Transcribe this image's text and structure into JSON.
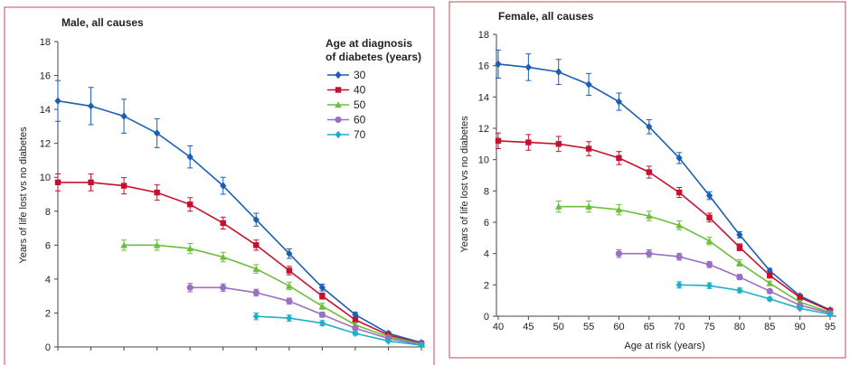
{
  "chart_data": [
    {
      "type": "line",
      "title": "Male, all causes",
      "xlabel": "",
      "ylabel": "Years of life lost vs no diabetes",
      "xlim": [
        40,
        95
      ],
      "ylim": [
        0,
        18
      ],
      "yticks": [
        0,
        2,
        4,
        6,
        8,
        10,
        12,
        14,
        16,
        18
      ],
      "x": [
        40,
        45,
        50,
        55,
        60,
        65,
        70,
        75,
        80,
        85,
        90,
        95
      ],
      "legend_title": [
        "Age at diagnosis",
        "of diabetes (years)"
      ],
      "legend_position": "top-right",
      "series": [
        {
          "name": "30",
          "color": "#1a5fb4",
          "marker": "diamond",
          "x": [
            40,
            45,
            50,
            55,
            60,
            65,
            70,
            75,
            80,
            85,
            90,
            95
          ],
          "values": [
            14.5,
            14.2,
            13.6,
            12.6,
            11.2,
            9.5,
            7.5,
            5.5,
            3.5,
            1.9,
            0.8,
            0.25
          ],
          "errors": [
            1.2,
            1.1,
            1.0,
            0.85,
            0.65,
            0.5,
            0.38,
            0.28,
            0.2,
            0.14,
            0.1,
            0.06
          ]
        },
        {
          "name": "40",
          "color": "#c8102e",
          "marker": "square",
          "x": [
            40,
            45,
            50,
            55,
            60,
            65,
            70,
            75,
            80,
            85,
            90,
            95
          ],
          "values": [
            9.7,
            9.7,
            9.5,
            9.1,
            8.4,
            7.3,
            6.0,
            4.5,
            3.0,
            1.6,
            0.7,
            0.2
          ],
          "errors": [
            0.5,
            0.5,
            0.48,
            0.45,
            0.4,
            0.35,
            0.3,
            0.25,
            0.18,
            0.13,
            0.1,
            0.06
          ]
        },
        {
          "name": "50",
          "color": "#6dbf3b",
          "marker": "triangle",
          "x": [
            50,
            55,
            60,
            65,
            70,
            75,
            80,
            85,
            90,
            95
          ],
          "values": [
            6.0,
            6.0,
            5.8,
            5.3,
            4.6,
            3.6,
            2.4,
            1.3,
            0.6,
            0.18
          ],
          "errors": [
            0.3,
            0.3,
            0.3,
            0.28,
            0.25,
            0.22,
            0.18,
            0.12,
            0.08,
            0.05
          ]
        },
        {
          "name": "60",
          "color": "#9b6fc3",
          "marker": "circle",
          "x": [
            60,
            65,
            70,
            75,
            80,
            85,
            90,
            95
          ],
          "values": [
            3.5,
            3.5,
            3.2,
            2.7,
            1.9,
            1.1,
            0.5,
            0.15
          ],
          "errors": [
            0.25,
            0.22,
            0.2,
            0.18,
            0.15,
            0.1,
            0.07,
            0.05
          ]
        },
        {
          "name": "70",
          "color": "#1fb0c9",
          "marker": "diamond",
          "x": [
            70,
            75,
            80,
            85,
            90,
            95
          ],
          "values": [
            1.8,
            1.7,
            1.4,
            0.8,
            0.35,
            0.1
          ],
          "errors": [
            0.2,
            0.18,
            0.15,
            0.1,
            0.07,
            0.04
          ]
        }
      ]
    },
    {
      "type": "line",
      "title": "Female, all causes",
      "xlabel": "Age at risk (years)",
      "ylabel": "Years of life lost vs no diabetes",
      "xlim": [
        40,
        95
      ],
      "ylim": [
        0,
        18
      ],
      "yticks": [
        0,
        2,
        4,
        6,
        8,
        10,
        12,
        14,
        16,
        18
      ],
      "xticks": [
        40,
        45,
        50,
        55,
        60,
        65,
        70,
        75,
        80,
        85,
        90,
        95
      ],
      "series": [
        {
          "name": "30",
          "color": "#1a5fb4",
          "marker": "diamond",
          "x": [
            40,
            45,
            50,
            55,
            60,
            65,
            70,
            75,
            80,
            85,
            90,
            95
          ],
          "values": [
            16.1,
            15.9,
            15.6,
            14.8,
            13.7,
            12.1,
            10.1,
            7.7,
            5.2,
            2.9,
            1.3,
            0.4
          ],
          "errors": [
            0.9,
            0.85,
            0.8,
            0.7,
            0.55,
            0.45,
            0.35,
            0.25,
            0.2,
            0.15,
            0.1,
            0.06
          ]
        },
        {
          "name": "40",
          "color": "#c8102e",
          "marker": "square",
          "x": [
            40,
            45,
            50,
            55,
            60,
            65,
            70,
            75,
            80,
            85,
            90,
            95
          ],
          "values": [
            11.2,
            11.1,
            11.0,
            10.7,
            10.1,
            9.2,
            7.9,
            6.3,
            4.4,
            2.6,
            1.2,
            0.35
          ],
          "errors": [
            0.5,
            0.5,
            0.48,
            0.45,
            0.42,
            0.38,
            0.32,
            0.28,
            0.22,
            0.16,
            0.1,
            0.06
          ]
        },
        {
          "name": "50",
          "color": "#6dbf3b",
          "marker": "triangle",
          "x": [
            50,
            55,
            60,
            65,
            70,
            75,
            80,
            85,
            90,
            95
          ],
          "values": [
            7.0,
            7.0,
            6.8,
            6.4,
            5.8,
            4.8,
            3.4,
            2.1,
            0.9,
            0.25
          ],
          "errors": [
            0.35,
            0.35,
            0.33,
            0.3,
            0.28,
            0.24,
            0.2,
            0.14,
            0.09,
            0.05
          ]
        },
        {
          "name": "60",
          "color": "#9b6fc3",
          "marker": "circle",
          "x": [
            60,
            65,
            70,
            75,
            80,
            85,
            90,
            95
          ],
          "values": [
            4.0,
            4.0,
            3.8,
            3.3,
            2.5,
            1.6,
            0.7,
            0.2
          ],
          "errors": [
            0.25,
            0.24,
            0.22,
            0.2,
            0.17,
            0.12,
            0.08,
            0.05
          ]
        },
        {
          "name": "70",
          "color": "#1fb0c9",
          "marker": "diamond",
          "x": [
            70,
            75,
            80,
            85,
            90,
            95
          ],
          "values": [
            2.0,
            1.95,
            1.65,
            1.1,
            0.5,
            0.12
          ],
          "errors": [
            0.2,
            0.18,
            0.15,
            0.11,
            0.07,
            0.04
          ]
        }
      ]
    }
  ]
}
